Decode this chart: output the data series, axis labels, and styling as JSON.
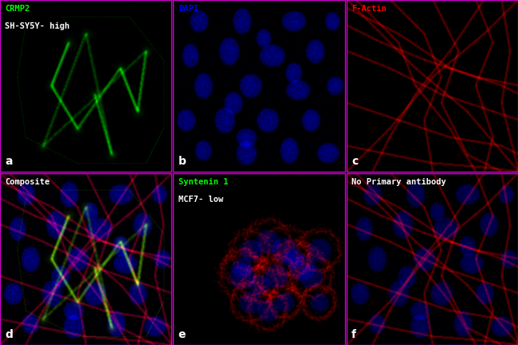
{
  "figsize": [
    6.5,
    4.34
  ],
  "dpi": 100,
  "panels": [
    {
      "id": "a",
      "row": 0,
      "col": 0,
      "bg_color": "#000000",
      "channel_color": [
        0,
        255,
        0
      ],
      "label": "a",
      "title_lines": [
        "CRMP2",
        "SH-SY5Y- high"
      ],
      "title_colors": [
        "#00ff00",
        "#ffffff"
      ],
      "style": "neuronal_green"
    },
    {
      "id": "b",
      "row": 0,
      "col": 1,
      "bg_color": "#000000",
      "channel_color": [
        0,
        0,
        255
      ],
      "label": "b",
      "title_lines": [
        "DAPI"
      ],
      "title_colors": [
        "#0000ff"
      ],
      "style": "nuclei_blue"
    },
    {
      "id": "c",
      "row": 0,
      "col": 2,
      "bg_color": "#000000",
      "channel_color": [
        255,
        0,
        0
      ],
      "label": "c",
      "title_lines": [
        "F-Actin"
      ],
      "title_colors": [
        "#ff0000"
      ],
      "style": "actin_red"
    },
    {
      "id": "d",
      "row": 1,
      "col": 0,
      "bg_color": "#000000",
      "channel_color": [
        255,
        255,
        0
      ],
      "label": "d",
      "title_lines": [
        "Composite"
      ],
      "title_colors": [
        "#ffffff"
      ],
      "style": "composite"
    },
    {
      "id": "e",
      "row": 1,
      "col": 1,
      "bg_color": "#000000",
      "channel_color": [
        255,
        0,
        0
      ],
      "label": "e",
      "title_lines": [
        "Syntenin 1",
        "MCF7- low"
      ],
      "title_colors": [
        "#00ff00",
        "#ffffff"
      ],
      "style": "mcf7_composite"
    },
    {
      "id": "f",
      "row": 1,
      "col": 2,
      "bg_color": "#000000",
      "channel_color": [
        255,
        0,
        0
      ],
      "label": "f",
      "title_lines": [
        "No Primary antibody"
      ],
      "title_colors": [
        "#ffffff"
      ],
      "style": "no_primary"
    }
  ],
  "border_color": "#ff00ff",
  "border_width": 1,
  "ncols": 3,
  "nrows": 2
}
